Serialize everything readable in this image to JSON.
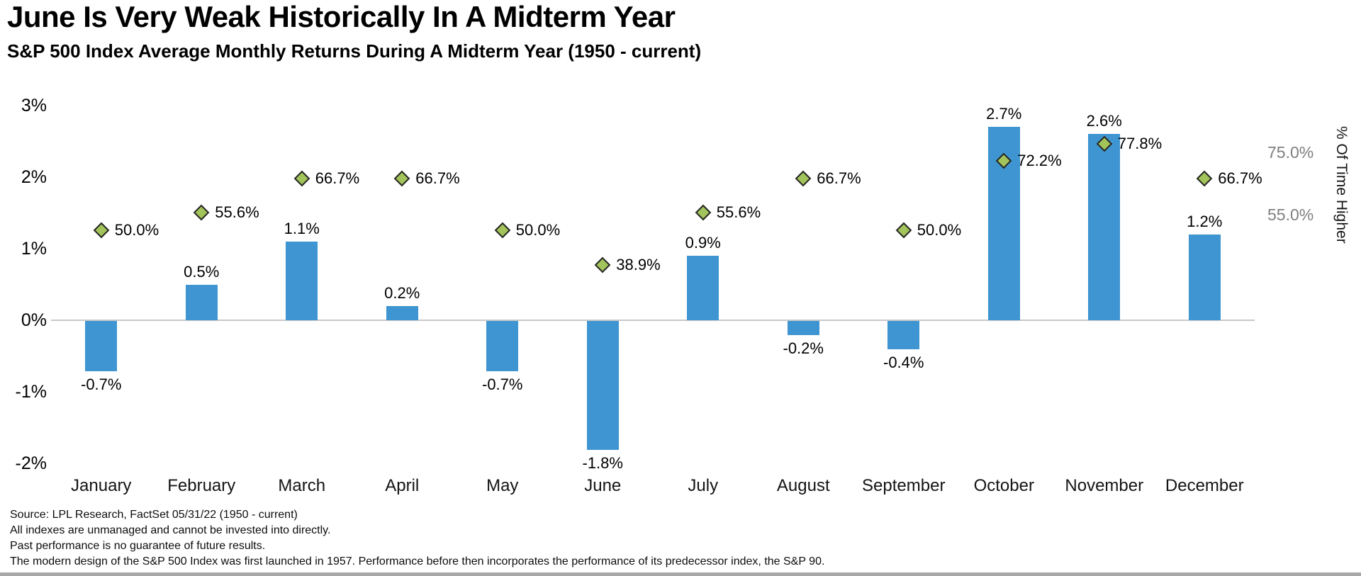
{
  "header": {
    "title": "June Is Very Weak Historically In A Midterm Year",
    "subtitle": "S&P 500 Index Average Monthly Returns During A Midterm Year (1950 - current)"
  },
  "chart_data": {
    "type": "bar",
    "subtype": "bar-with-diamond-markers-combo",
    "title": "June Is Very Weak Historically In A Midterm Year",
    "subtitle": "S&P 500 Index Average Monthly Returns During A Midterm Year (1950 - current)",
    "categories": [
      "January",
      "February",
      "March",
      "April",
      "May",
      "June",
      "July",
      "August",
      "September",
      "October",
      "November",
      "December"
    ],
    "series": [
      {
        "name": "Average Monthly Return",
        "chart_type": "bar",
        "axis": "left",
        "unit": "%",
        "values": [
          -0.7,
          0.5,
          1.1,
          0.2,
          -0.7,
          -1.8,
          0.9,
          -0.2,
          -0.4,
          2.7,
          2.6,
          1.2
        ],
        "labels": [
          "-0.7%",
          "0.5%",
          "1.1%",
          "0.2%",
          "-0.7%",
          "-1.8%",
          "0.9%",
          "-0.2%",
          "-0.4%",
          "2.7%",
          "2.6%",
          "1.2%"
        ],
        "color": "#3E95D1"
      },
      {
        "name": "% Of Time Higher",
        "chart_type": "scatter-diamond",
        "axis": "right",
        "unit": "%",
        "values": [
          50.0,
          55.6,
          66.7,
          66.7,
          50.0,
          38.9,
          55.6,
          66.7,
          50.0,
          72.2,
          77.8,
          66.7
        ],
        "labels": [
          "50.0%",
          "55.6%",
          "66.7%",
          "66.7%",
          "50.0%",
          "38.9%",
          "55.6%",
          "66.7%",
          "50.0%",
          "72.2%",
          "77.8%",
          "66.7%"
        ],
        "fill": "#A2C45A",
        "stroke": "#262626"
      }
    ],
    "left_axis": {
      "tick_labels": [
        "3%",
        "2%",
        "1%",
        "0%",
        "-1%",
        "-2%"
      ],
      "tick_values": [
        3,
        2,
        1,
        0,
        -1,
        -2
      ],
      "range": [
        -2,
        3
      ]
    },
    "right_axis": {
      "title": "% Of Time Higher",
      "tick_labels": [
        "75.0%",
        "55.0%"
      ],
      "tick_values": [
        75,
        55
      ],
      "color": "#7f7f7f"
    },
    "legend": "none",
    "grid": "zero-line-only",
    "zero_line_color": "#c9c9c9"
  },
  "footer": {
    "lines": [
      "Source: LPL Research, FactSet 05/31/22  (1950 - current)",
      "All indexes are unmanaged and cannot be invested into directly.",
      "Past performance is no guarantee of future results.",
      "The modern design of the S&P 500 Index was first launched in 1957. Performance before then incorporates the performance of its  predecessor index, the S&P 90."
    ]
  }
}
